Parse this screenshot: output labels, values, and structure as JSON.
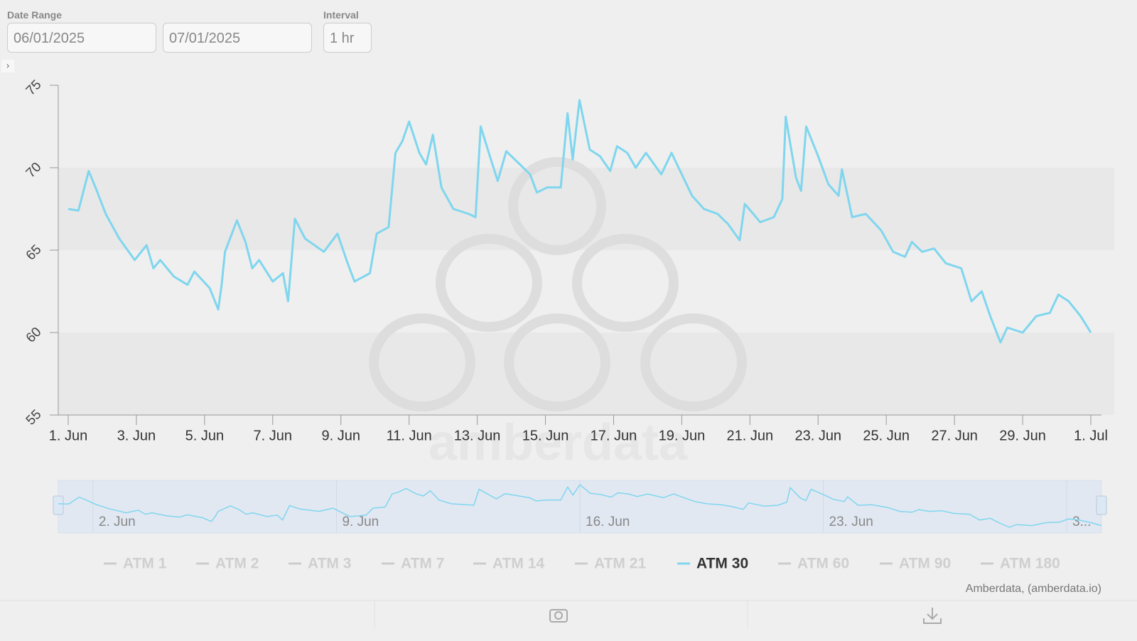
{
  "controls": {
    "date_range_label": "Date Range",
    "start_date": "06/01/2025",
    "end_date": "07/01/2025",
    "interval_label": "Interval",
    "interval": "1 hr"
  },
  "chart_data": {
    "type": "line",
    "xlim": [
      1,
      31
    ],
    "xticks": [
      {
        "value": 1,
        "label": "1. Jun"
      },
      {
        "value": 3,
        "label": "3. Jun"
      },
      {
        "value": 5,
        "label": "5. Jun"
      },
      {
        "value": 7,
        "label": "7. Jun"
      },
      {
        "value": 9,
        "label": "9. Jun"
      },
      {
        "value": 11,
        "label": "11. Jun"
      },
      {
        "value": 13,
        "label": "13. Jun"
      },
      {
        "value": 15,
        "label": "15. Jun"
      },
      {
        "value": 17,
        "label": "17. Jun"
      },
      {
        "value": 19,
        "label": "19. Jun"
      },
      {
        "value": 21,
        "label": "21. Jun"
      },
      {
        "value": 23,
        "label": "23. Jun"
      },
      {
        "value": 25,
        "label": "25. Jun"
      },
      {
        "value": 27,
        "label": "27. Jun"
      },
      {
        "value": 29,
        "label": "29. Jun"
      },
      {
        "value": 31,
        "label": "1. Jul"
      }
    ],
    "ylim": [
      55,
      75
    ],
    "yticks": [
      55,
      60,
      65,
      70,
      75
    ],
    "x": [
      1,
      1.3,
      1.6,
      1.8,
      2.1,
      2.5,
      2.95,
      3.3,
      3.5,
      3.7,
      4.1,
      4.5,
      4.7,
      5.15,
      5.4,
      5.5,
      5.6,
      5.95,
      6.2,
      6.4,
      6.6,
      7.0,
      7.3,
      7.45,
      7.65,
      7.95,
      8.5,
      8.9,
      9.2,
      9.4,
      9.85,
      10.05,
      10.4,
      10.6,
      10.8,
      11.0,
      11.3,
      11.5,
      11.7,
      11.95,
      12.3,
      12.75,
      12.95,
      13.1,
      13.4,
      13.6,
      13.85,
      14.2,
      14.55,
      14.75,
      15.05,
      15.45,
      15.65,
      15.8,
      16.0,
      16.3,
      16.6,
      16.9,
      17.1,
      17.4,
      17.65,
      17.95,
      18.4,
      18.7,
      19.0,
      19.3,
      19.65,
      20.05,
      20.35,
      20.7,
      20.85,
      21.1,
      21.3,
      21.7,
      21.95,
      22.05,
      22.35,
      22.5,
      22.65,
      23.0,
      23.3,
      23.6,
      23.7,
      24.0,
      24.4,
      24.85,
      25.2,
      25.55,
      25.75,
      26.05,
      26.4,
      26.75,
      27.2,
      27.5,
      27.8,
      28.05,
      28.35,
      28.55,
      29.0,
      29.4,
      29.8,
      30.05,
      30.35,
      30.7,
      31.0
    ],
    "series": [
      {
        "name": "ATM 1",
        "visible": false
      },
      {
        "name": "ATM 2",
        "visible": false
      },
      {
        "name": "ATM 3",
        "visible": false
      },
      {
        "name": "ATM 7",
        "visible": false
      },
      {
        "name": "ATM 14",
        "visible": false
      },
      {
        "name": "ATM 21",
        "visible": false
      },
      {
        "name": "ATM 30",
        "visible": true,
        "color": "#7fd6ee",
        "values": [
          67.5,
          67.4,
          69.8,
          68.8,
          67.2,
          65.7,
          64.4,
          65.3,
          63.9,
          64.4,
          63.4,
          62.9,
          63.7,
          62.7,
          61.4,
          62.9,
          64.9,
          66.8,
          65.5,
          63.9,
          64.4,
          63.1,
          63.6,
          61.9,
          66.9,
          65.7,
          64.9,
          66.0,
          64.2,
          63.1,
          63.6,
          66.0,
          66.4,
          70.9,
          71.6,
          72.8,
          70.9,
          70.2,
          72.0,
          68.8,
          67.5,
          67.2,
          67.0,
          72.5,
          70.5,
          69.2,
          71.0,
          70.3,
          69.6,
          68.5,
          68.8,
          68.8,
          73.3,
          70.5,
          74.1,
          71.1,
          70.7,
          69.8,
          71.3,
          70.9,
          70.0,
          70.9,
          69.6,
          70.9,
          69.6,
          68.3,
          67.5,
          67.2,
          66.6,
          65.6,
          67.8,
          67.2,
          66.7,
          67.0,
          68.1,
          73.1,
          69.4,
          68.6,
          72.5,
          70.7,
          69.0,
          68.3,
          69.9,
          67.0,
          67.2,
          66.2,
          64.9,
          64.6,
          65.5,
          64.9,
          65.1,
          64.2,
          63.9,
          61.9,
          62.5,
          61.0,
          59.4,
          60.3,
          60.0,
          61.0,
          61.2,
          62.3,
          61.9,
          61.0,
          60.0
        ]
      },
      {
        "name": "ATM 60",
        "visible": false
      },
      {
        "name": "ATM 90",
        "visible": false
      },
      {
        "name": "ATM 180",
        "visible": false
      }
    ],
    "navigator_xticks": [
      {
        "value": 2,
        "label": "2. Jun"
      },
      {
        "value": 9,
        "label": "9. Jun"
      },
      {
        "value": 16,
        "label": "16. Jun"
      },
      {
        "value": 23,
        "label": "23. Jun"
      },
      {
        "value": 30,
        "label": "3..."
      }
    ],
    "watermark": "amberdata",
    "credits": "Amberdata, (amberdata.io)"
  }
}
